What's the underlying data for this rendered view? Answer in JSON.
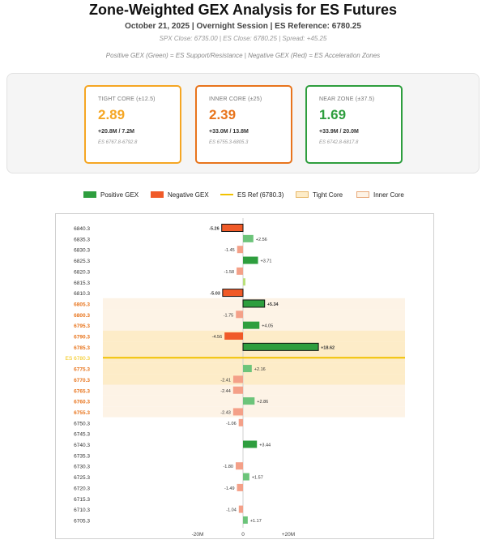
{
  "title": "Zone-Weighted GEX Analysis for ES Futures",
  "subtitle": "October 21, 2025 | Overnight Session | ES Reference: 6780.25",
  "spx_line": "SPX Close: 6735.00 | ES Close: 6780.25 | Spread: +45.25",
  "note": "Positive GEX (Green) = ES Support/Resistance | Negative GEX (Red) = ES Acceleration Zones",
  "cards": [
    {
      "label": "TIGHT CORE (±12.5)",
      "value": "2.89",
      "flow": "+20.8M / 7.2M",
      "range": "ES 6767.8-6792.8",
      "color": "#f5a623"
    },
    {
      "label": "INNER CORE (±25)",
      "value": "2.39",
      "flow": "+33.0M / 13.8M",
      "range": "ES 6755.3-6805.3",
      "color": "#e8741c"
    },
    {
      "label": "NEAR ZONE (±37.5)",
      "value": "1.69",
      "flow": "+33.9M / 20.0M",
      "range": "ES 6742.8-6817.8",
      "color": "#2e9e3e"
    }
  ],
  "legend": {
    "positive": "Positive GEX",
    "negative": "Negative GEX",
    "es_ref": "ES Ref (6780.3)",
    "tight": "Tight Core",
    "inner": "Inner Core"
  },
  "colors": {
    "positive": "#2e9e3e",
    "negative": "#f05a28",
    "es_ref": "#f2c200",
    "tight_fill": "#fdecc8",
    "inner_fill": "#fdf3e6",
    "zone_label": "#e8741c"
  },
  "chart_data": {
    "type": "bar",
    "orientation": "horizontal",
    "categories": [
      "6840.3",
      "6835.3",
      "6830.3",
      "6825.3",
      "6820.3",
      "6815.3",
      "6810.3",
      "6805.3",
      "6800.3",
      "6795.3",
      "6790.3",
      "6785.3",
      "6780.3",
      "6775.3",
      "6770.3",
      "6765.3",
      "6760.3",
      "6755.3",
      "6750.3",
      "6745.3",
      "6740.3",
      "6735.3",
      "6730.3",
      "6725.3",
      "6720.3",
      "6715.3",
      "6710.3",
      "6705.3"
    ],
    "values": [
      -5.26,
      2.56,
      -1.45,
      3.71,
      -1.58,
      0.6,
      -5.03,
      5.34,
      -1.75,
      4.05,
      -4.56,
      18.62,
      0,
      2.16,
      -2.41,
      -2.44,
      2.86,
      -2.43,
      -1.06,
      0,
      3.44,
      0,
      -1.8,
      1.57,
      -1.49,
      0,
      -1.04,
      1.17
    ],
    "value_labels": [
      "-5.26",
      "+2.56",
      "-1.45",
      "+3.71",
      "-1.58",
      "",
      "-5.03",
      "+5.34",
      "-1.75",
      "+4.05",
      "-4.56",
      "+18.62",
      "",
      "+2.16",
      "-2.41",
      "-2.44",
      "+2.86",
      "-2.43",
      "-1.06",
      "",
      "+3.44",
      "",
      "-1.80",
      "+1.57",
      "-1.49",
      "",
      "-1.04",
      "+1.17"
    ],
    "outlined": [
      "6840.3",
      "6810.3",
      "6805.3",
      "6785.3"
    ],
    "tight_core": [
      "6790.3",
      "6785.3",
      "6775.3",
      "6770.3"
    ],
    "inner_core": [
      "6805.3",
      "6800.3",
      "6795.3",
      "6790.3",
      "6785.3",
      "6775.3",
      "6770.3",
      "6765.3",
      "6760.3",
      "6755.3"
    ],
    "es_ref_label": "ES 6780.3",
    "x_ticks": [
      {
        "value": -20,
        "label": "-20M"
      },
      {
        "value": 0,
        "label": "0"
      },
      {
        "value": 20,
        "label": "+20M"
      }
    ],
    "xlim": [
      -24,
      24
    ],
    "grid": false,
    "legend_position": "top"
  }
}
